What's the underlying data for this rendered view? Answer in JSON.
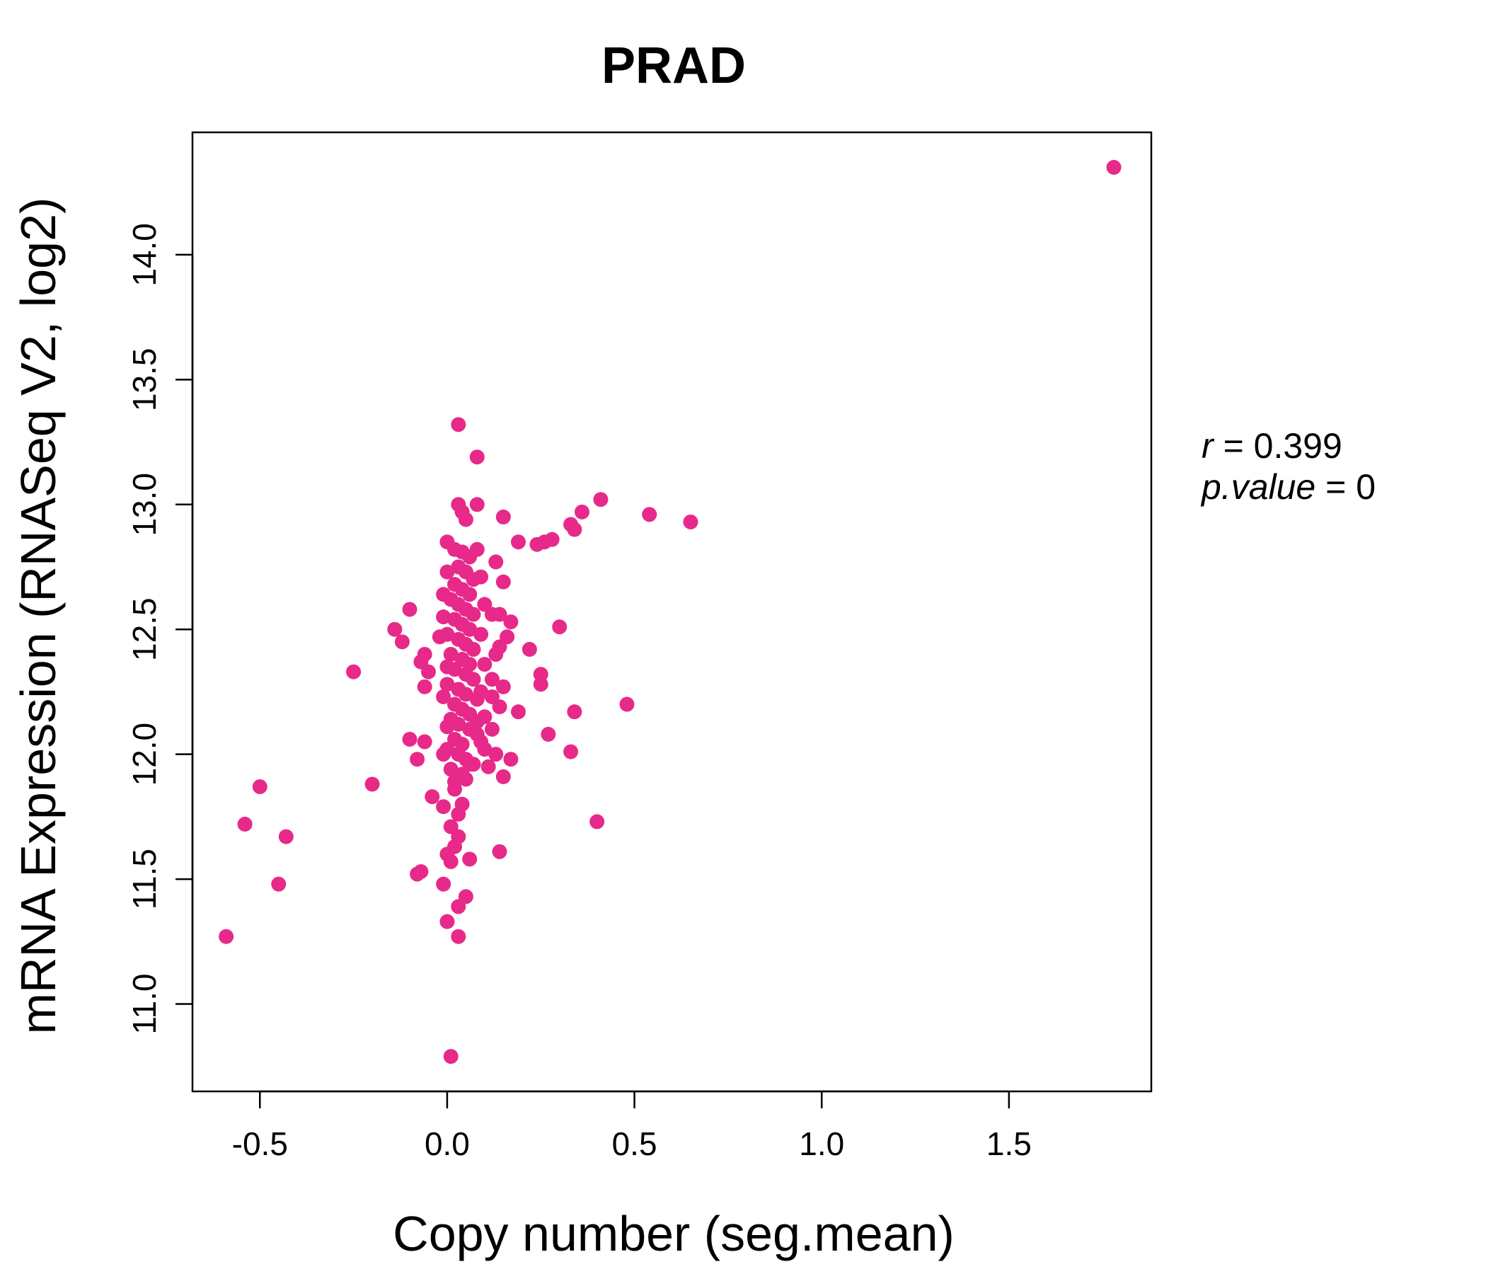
{
  "chart_data": {
    "type": "scatter",
    "title": "PRAD",
    "title_color": "#E7298A",
    "point_color": "#E7298A",
    "xlabel": "Copy number (seg.mean)",
    "ylabel": "mRNA Expression (RNASeq V2, log2)",
    "xlim": [
      -0.68,
      1.88
    ],
    "ylim": [
      10.65,
      14.49
    ],
    "xticks": [
      -0.5,
      0.0,
      0.5,
      1.0,
      1.5
    ],
    "xtick_labels": [
      "-0.5",
      "0.0",
      "0.5",
      "1.0",
      "1.5"
    ],
    "yticks": [
      11.0,
      11.5,
      12.0,
      12.5,
      13.0,
      13.5,
      14.0
    ],
    "ytick_labels": [
      "11.0",
      "11.5",
      "12.0",
      "12.5",
      "13.0",
      "13.5",
      "14.0"
    ],
    "grid": false,
    "legend": "none",
    "annotation": {
      "r_label": "r",
      "r_value": "0.399",
      "p_label": "p.value",
      "p_value": "0"
    },
    "points": [
      [
        1.78,
        14.35
      ],
      [
        0.03,
        13.32
      ],
      [
        0.08,
        13.19
      ],
      [
        0.41,
        13.02
      ],
      [
        0.54,
        12.96
      ],
      [
        0.65,
        12.93
      ],
      [
        0.36,
        12.97
      ],
      [
        0.33,
        12.92
      ],
      [
        0.34,
        12.9
      ],
      [
        0.28,
        12.86
      ],
      [
        0.26,
        12.85
      ],
      [
        0.24,
        12.84
      ],
      [
        0.19,
        12.85
      ],
      [
        0.15,
        12.95
      ],
      [
        0.08,
        13.0
      ],
      [
        0.03,
        13.0
      ],
      [
        0.04,
        12.97
      ],
      [
        0.05,
        12.94
      ],
      [
        -0.25,
        12.33
      ],
      [
        -0.1,
        12.58
      ],
      [
        -0.14,
        12.5
      ],
      [
        -0.12,
        12.45
      ],
      [
        -0.06,
        12.4
      ],
      [
        -0.07,
        12.37
      ],
      [
        -0.05,
        12.33
      ],
      [
        -0.06,
        12.27
      ],
      [
        -0.1,
        12.06
      ],
      [
        -0.06,
        12.05
      ],
      [
        -0.08,
        11.98
      ],
      [
        -0.2,
        11.88
      ],
      [
        -0.04,
        11.83
      ],
      [
        -0.01,
        11.79
      ],
      [
        -0.5,
        11.87
      ],
      [
        -0.54,
        11.72
      ],
      [
        -0.43,
        11.67
      ],
      [
        -0.45,
        11.48
      ],
      [
        -0.59,
        11.27
      ],
      [
        -0.08,
        11.52
      ],
      [
        -0.07,
        11.53
      ],
      [
        -0.01,
        11.48
      ],
      [
        0.0,
        11.33
      ],
      [
        0.03,
        11.39
      ],
      [
        0.05,
        11.43
      ],
      [
        0.03,
        11.27
      ],
      [
        0.01,
        10.79
      ],
      [
        0.0,
        11.6
      ],
      [
        0.01,
        11.57
      ],
      [
        0.02,
        11.63
      ],
      [
        0.03,
        11.67
      ],
      [
        0.01,
        11.71
      ],
      [
        0.06,
        11.58
      ],
      [
        0.14,
        11.61
      ],
      [
        0.4,
        11.73
      ],
      [
        0.48,
        12.2
      ],
      [
        0.33,
        12.01
      ],
      [
        0.34,
        12.17
      ],
      [
        0.27,
        12.08
      ],
      [
        0.25,
        12.32
      ],
      [
        0.25,
        12.28
      ],
      [
        0.22,
        12.42
      ],
      [
        0.3,
        12.51
      ],
      [
        0.17,
        12.53
      ],
      [
        0.19,
        12.17
      ],
      [
        0.17,
        11.98
      ],
      [
        0.15,
        11.91
      ],
      [
        0.11,
        11.95
      ],
      [
        0.13,
        12.77
      ],
      [
        0.15,
        12.69
      ],
      [
        0.14,
        12.56
      ],
      [
        0.12,
        12.56
      ],
      [
        0.16,
        12.47
      ],
      [
        0.14,
        12.43
      ],
      [
        0.13,
        12.4
      ],
      [
        0.12,
        12.3
      ],
      [
        0.15,
        12.27
      ],
      [
        0.12,
        12.23
      ],
      [
        0.14,
        12.19
      ],
      [
        0.1,
        12.15
      ],
      [
        0.12,
        12.1
      ],
      [
        0.09,
        12.05
      ],
      [
        0.13,
        12.0
      ],
      [
        0.1,
        12.02
      ],
      [
        0.05,
        11.9
      ],
      [
        0.06,
        11.96
      ],
      [
        0.02,
        11.86
      ],
      [
        0.04,
        11.8
      ],
      [
        0.03,
        11.76
      ],
      [
        0.0,
        12.85
      ],
      [
        0.02,
        12.82
      ],
      [
        0.04,
        12.81
      ],
      [
        0.06,
        12.79
      ],
      [
        0.08,
        12.82
      ],
      [
        0.03,
        12.75
      ],
      [
        0.05,
        12.73
      ],
      [
        0.07,
        12.7
      ],
      [
        0.02,
        12.68
      ],
      [
        0.04,
        12.66
      ],
      [
        0.06,
        12.64
      ],
      [
        0.01,
        12.62
      ],
      [
        0.03,
        12.6
      ],
      [
        0.05,
        12.58
      ],
      [
        0.07,
        12.56
      ],
      [
        0.02,
        12.54
      ],
      [
        0.04,
        12.52
      ],
      [
        0.06,
        12.5
      ],
      [
        0.0,
        12.48
      ],
      [
        0.03,
        12.46
      ],
      [
        0.05,
        12.44
      ],
      [
        0.07,
        12.42
      ],
      [
        0.01,
        12.4
      ],
      [
        0.04,
        12.38
      ],
      [
        0.06,
        12.36
      ],
      [
        0.02,
        12.34
      ],
      [
        0.05,
        12.32
      ],
      [
        0.07,
        12.3
      ],
      [
        0.0,
        12.28
      ],
      [
        0.03,
        12.26
      ],
      [
        0.05,
        12.24
      ],
      [
        0.08,
        12.22
      ],
      [
        0.02,
        12.2
      ],
      [
        0.04,
        12.18
      ],
      [
        0.06,
        12.16
      ],
      [
        0.01,
        12.14
      ],
      [
        0.03,
        12.12
      ],
      [
        0.06,
        12.1
      ],
      [
        0.08,
        12.08
      ],
      [
        0.02,
        12.06
      ],
      [
        0.04,
        12.04
      ],
      [
        0.0,
        12.02
      ],
      [
        0.03,
        12.0
      ],
      [
        0.05,
        11.98
      ],
      [
        0.07,
        11.96
      ],
      [
        0.01,
        11.94
      ],
      [
        0.04,
        11.92
      ],
      [
        0.02,
        11.89
      ],
      [
        0.09,
        12.71
      ],
      [
        0.1,
        12.6
      ],
      [
        0.09,
        12.48
      ],
      [
        0.1,
        12.36
      ],
      [
        0.09,
        12.25
      ],
      [
        0.08,
        12.13
      ],
      [
        0.0,
        12.73
      ],
      [
        -0.01,
        12.64
      ],
      [
        -0.01,
        12.55
      ],
      [
        -0.02,
        12.47
      ],
      [
        0.0,
        12.35
      ],
      [
        -0.01,
        12.23
      ],
      [
        0.0,
        12.11
      ],
      [
        -0.01,
        12.0
      ]
    ]
  }
}
